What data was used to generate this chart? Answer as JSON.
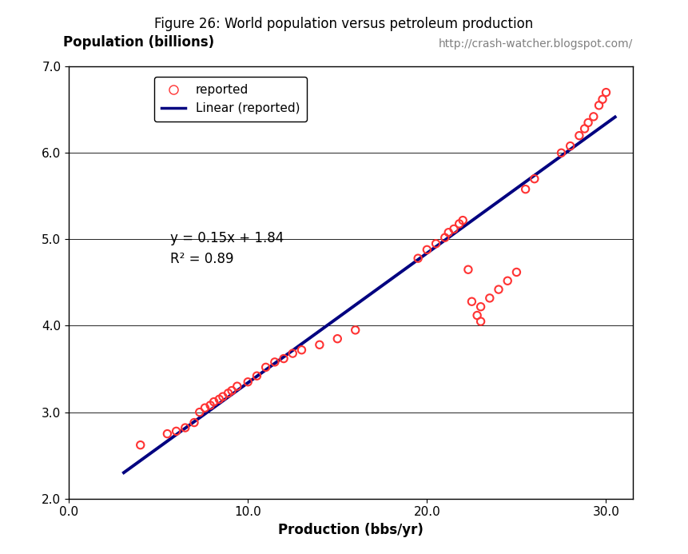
{
  "title": "Figure 26: World population versus petroleum production",
  "ylabel": "Population (billions)",
  "xlabel": "Production (bbs/yr)",
  "url_text": "http://crash-watcher.blogspot.com/",
  "equation": "y = 0.15x + 1.84",
  "r2": "R² = 0.89",
  "xlim": [
    0.0,
    31.5
  ],
  "ylim": [
    2.0,
    7.0
  ],
  "xticks": [
    0.0,
    10.0,
    20.0,
    30.0
  ],
  "yticks": [
    2.0,
    3.0,
    4.0,
    5.0,
    6.0,
    7.0
  ],
  "xtick_labels": [
    "0.0",
    "10.0",
    "20.0",
    "30.0"
  ],
  "ytick_labels": [
    "2.0",
    "3.0",
    "4.0",
    "5.0",
    "6.0",
    "7.0"
  ],
  "scatter_x": [
    4.0,
    5.5,
    6.0,
    6.5,
    7.0,
    7.3,
    7.6,
    7.9,
    8.1,
    8.4,
    8.6,
    8.9,
    9.1,
    9.4,
    10.0,
    10.5,
    11.0,
    11.5,
    12.0,
    12.5,
    13.0,
    14.0,
    15.0,
    16.0,
    19.5,
    20.0,
    20.5,
    21.0,
    21.2,
    21.5,
    21.8,
    22.0,
    22.3,
    22.5,
    22.8,
    23.0,
    23.0,
    23.5,
    24.0,
    24.5,
    25.0,
    25.5,
    26.0,
    27.5,
    28.0,
    28.5,
    28.8,
    29.0,
    29.3,
    29.6,
    29.8,
    30.0
  ],
  "scatter_y": [
    2.62,
    2.75,
    2.78,
    2.82,
    2.88,
    3.0,
    3.05,
    3.08,
    3.12,
    3.15,
    3.18,
    3.22,
    3.25,
    3.3,
    3.35,
    3.42,
    3.52,
    3.58,
    3.62,
    3.68,
    3.72,
    3.78,
    3.85,
    3.95,
    4.78,
    4.88,
    4.95,
    5.02,
    5.08,
    5.12,
    5.18,
    5.22,
    4.65,
    4.28,
    4.12,
    4.05,
    4.22,
    4.32,
    4.42,
    4.52,
    4.62,
    5.58,
    5.7,
    6.0,
    6.08,
    6.2,
    6.28,
    6.35,
    6.42,
    6.55,
    6.62,
    6.7
  ],
  "line_slope": 0.15,
  "line_intercept": 1.84,
  "line_x_start": 3.07,
  "line_x_end": 30.5,
  "scatter_color": "#FF3333",
  "line_color": "#000080",
  "background_color": "#FFFFFF",
  "legend_items": [
    "reported",
    "Linear (reported)"
  ],
  "title_fontsize": 12,
  "axis_label_fontsize": 12,
  "tick_fontsize": 11,
  "url_color": "#808080"
}
